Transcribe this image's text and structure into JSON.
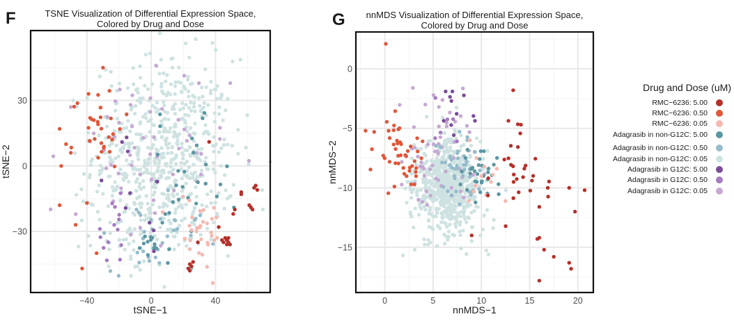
{
  "figure": {
    "panels": [
      {
        "letter": "F",
        "title_line1": "TSNE Visualization of Differential Expression Space,",
        "title_line2": "Colored by Drug and Dose"
      },
      {
        "letter": "G",
        "title_line1": "nnMDS Visualization of Differential Expression Space,",
        "title_line2": "Colored by Drug and Dose"
      }
    ]
  },
  "legend": {
    "title": "Drug and Dose (uM)",
    "entries": [
      {
        "label": "RMC−6236: 5.00",
        "color": "#b5302a"
      },
      {
        "label": "RMC−6236: 0.50",
        "color": "#e0573a"
      },
      {
        "label": "RMC−6236: 0.05",
        "color": "#f5b8b0"
      },
      {
        "label": "Adagrasib in non-G12C: 5.00",
        "color": "#5b97a2"
      },
      {
        "label": "Adagrasib in non-G12C: 0.50",
        "color": "#96bccb"
      },
      {
        "label": "Adagrasib in non-G12C: 0.05",
        "color": "#cfe2e2"
      },
      {
        "label": "Adagrasib in G12C: 5.00",
        "color": "#7a4c9a"
      },
      {
        "label": "Adagrasib in G12C: 0.50",
        "color": "#a57bc1"
      },
      {
        "label": "Adagrasib in G12C: 0.05",
        "color": "#c6a8d3"
      }
    ]
  },
  "chart_data": [
    {
      "type": "scatter",
      "title": "TSNE Visualization of Differential Expression Space, Colored by Drug and Dose",
      "xlabel": "tSNE−1",
      "ylabel": "tSNE−2",
      "xlim": [
        -75,
        74
      ],
      "ylim": [
        -58,
        62
      ],
      "xticks": [
        -40,
        0,
        40
      ],
      "xtick_labels": [
        "−40",
        "0",
        "40"
      ],
      "yticks": [
        -30,
        0,
        30
      ],
      "ytick_labels": [
        "−30",
        "0",
        "30"
      ],
      "grid": true,
      "legend_position": "right",
      "clusters": [
        {
          "group": 5,
          "n": 620,
          "cx": 8,
          "cy": 5,
          "sx": 22,
          "sy": 22
        },
        {
          "group": 5,
          "n": 40,
          "cx": -10,
          "cy": -30,
          "sx": 14,
          "sy": 8
        },
        {
          "group": 8,
          "n": 55,
          "cx": -8,
          "cy": 0,
          "sx": 28,
          "sy": 24
        },
        {
          "group": 7,
          "n": 14,
          "cx": -25,
          "cy": -30,
          "sx": 8,
          "sy": 8
        },
        {
          "group": 6,
          "n": 10,
          "cx": -5,
          "cy": -15,
          "sx": 20,
          "sy": 15
        },
        {
          "group": 4,
          "n": 25,
          "cx": 8,
          "cy": -25,
          "sx": 16,
          "sy": 12
        },
        {
          "group": 3,
          "n": 30,
          "cx": 20,
          "cy": -10,
          "sx": 14,
          "sy": 14
        },
        {
          "group": 3,
          "n": 12,
          "cx": 0,
          "cy": -38,
          "sx": 5,
          "sy": 4
        },
        {
          "group": 4,
          "n": 10,
          "cx": 0,
          "cy": -38,
          "sx": 4,
          "sy": 4
        },
        {
          "group": 2,
          "n": 32,
          "cx": 30,
          "cy": -30,
          "sx": 9,
          "sy": 9
        },
        {
          "group": 1,
          "n": 28,
          "cx": -33,
          "cy": 18,
          "sx": 8,
          "sy": 9
        }
      ],
      "points": [
        {
          "group": 0,
          "x": 47,
          "y": -34
        },
        {
          "group": 0,
          "x": 48,
          "y": -35
        },
        {
          "group": 0,
          "x": 46,
          "y": -33
        },
        {
          "group": 0,
          "x": 49,
          "y": -36
        },
        {
          "group": 0,
          "x": 45,
          "y": -35
        },
        {
          "group": 0,
          "x": 47,
          "y": -36
        },
        {
          "group": 0,
          "x": 48,
          "y": -33
        },
        {
          "group": 0,
          "x": 44,
          "y": -34
        },
        {
          "group": 0,
          "x": 24,
          "y": -45
        },
        {
          "group": 0,
          "x": 25,
          "y": -46
        },
        {
          "group": 0,
          "x": 23,
          "y": -47
        },
        {
          "group": 0,
          "x": 26,
          "y": -44
        },
        {
          "group": 0,
          "x": 24,
          "y": -48
        },
        {
          "group": 0,
          "x": 62,
          "y": -19
        },
        {
          "group": 0,
          "x": 63,
          "y": -20
        },
        {
          "group": 0,
          "x": 61,
          "y": -18
        },
        {
          "group": 0,
          "x": 64,
          "y": -10
        },
        {
          "group": 0,
          "x": 65,
          "y": -9
        },
        {
          "group": 0,
          "x": 66,
          "y": -11
        },
        {
          "group": 0,
          "x": 56,
          "y": -13
        },
        {
          "group": 0,
          "x": 51,
          "y": -22
        },
        {
          "group": 0,
          "x": 52,
          "y": -20
        },
        {
          "group": 0,
          "x": 42,
          "y": -28
        },
        {
          "group": 0,
          "x": 56,
          "y": -12
        },
        {
          "group": 0,
          "x": 29,
          "y": -35
        },
        {
          "group": 0,
          "x": 36,
          "y": 11
        },
        {
          "group": 1,
          "x": -57,
          "y": 17
        },
        {
          "group": 1,
          "x": -53,
          "y": 10
        },
        {
          "group": 1,
          "x": -50,
          "y": 6
        },
        {
          "group": 1,
          "x": -56,
          "y": 0
        },
        {
          "group": 1,
          "x": -57,
          "y": -18
        },
        {
          "group": 1,
          "x": -47,
          "y": -27
        },
        {
          "group": 1,
          "x": -40,
          "y": -17
        },
        {
          "group": 1,
          "x": -34,
          "y": -40
        },
        {
          "group": 1,
          "x": -43,
          "y": -47
        },
        {
          "group": 1,
          "x": -38,
          "y": 22
        },
        {
          "group": 1,
          "x": -30,
          "y": 45
        },
        {
          "group": 1,
          "x": -39,
          "y": 33
        },
        {
          "group": 8,
          "x": 3,
          "y": 46
        },
        {
          "group": 8,
          "x": -50,
          "y": 27
        }
      ]
    },
    {
      "type": "scatter",
      "title": "nnMDS Visualization of Differential Expression Space, Colored by Drug and Dose",
      "xlabel": "nnMDS−1",
      "ylabel": "nnMDS−2",
      "xlim": [
        -3,
        21.6
      ],
      "ylim": [
        -18.8,
        3.1
      ],
      "xticks": [
        0,
        5,
        10,
        15,
        20
      ],
      "xtick_labels": [
        "0",
        "5",
        "10",
        "15",
        "20"
      ],
      "yticks": [
        0,
        -5,
        -10,
        -15
      ],
      "ytick_labels": [
        "0",
        "−5",
        "−10",
        "−15"
      ],
      "grid": true,
      "legend_position": "right",
      "clusters": [
        {
          "group": 5,
          "n": 620,
          "cx": 6.4,
          "cy": -9.6,
          "sx": 1.6,
          "sy": 1.8
        },
        {
          "group": 5,
          "n": 60,
          "cx": 7.5,
          "cy": -12,
          "sx": 2.2,
          "sy": 1.7
        },
        {
          "group": 4,
          "n": 45,
          "cx": 7.7,
          "cy": -8.5,
          "sx": 1.2,
          "sy": 1.6
        },
        {
          "group": 3,
          "n": 32,
          "cx": 9.8,
          "cy": -8.8,
          "sx": 1.0,
          "sy": 1.2
        },
        {
          "group": 8,
          "n": 55,
          "cx": 5.5,
          "cy": -7.8,
          "sx": 2.0,
          "sy": 2.4
        },
        {
          "group": 7,
          "n": 6,
          "cx": 6.5,
          "cy": -5,
          "sx": 1.0,
          "sy": 1.4
        },
        {
          "group": 6,
          "n": 8,
          "cx": 7,
          "cy": -4,
          "sx": 1.0,
          "sy": 1.8
        },
        {
          "group": 1,
          "n": 45,
          "cx": 1.6,
          "cy": -7.2,
          "sx": 1.3,
          "sy": 1.5
        },
        {
          "group": 0,
          "n": 28,
          "cx": 14,
          "cy": -8,
          "sx": 1.8,
          "sy": 2.2
        }
      ],
      "points": [
        {
          "group": 1,
          "x": 0.1,
          "y": 2.1
        },
        {
          "group": 1,
          "x": -2.0,
          "y": -5.2
        },
        {
          "group": 1,
          "x": -1.1,
          "y": -5.3
        },
        {
          "group": 0,
          "x": 13.3,
          "y": -1.8
        },
        {
          "group": 0,
          "x": 15.8,
          "y": -14.3
        },
        {
          "group": 0,
          "x": 16.0,
          "y": -14.2
        },
        {
          "group": 0,
          "x": 16.5,
          "y": -15.2
        },
        {
          "group": 0,
          "x": 17.5,
          "y": -15.8
        },
        {
          "group": 0,
          "x": 19.1,
          "y": -16.3
        },
        {
          "group": 0,
          "x": 19.3,
          "y": -16.8
        },
        {
          "group": 0,
          "x": 16.0,
          "y": -17.8
        },
        {
          "group": 0,
          "x": 19.7,
          "y": -12.0
        },
        {
          "group": 0,
          "x": 20.7,
          "y": -10.2
        },
        {
          "group": 0,
          "x": 19.1,
          "y": -10.0
        },
        {
          "group": 0,
          "x": 16.0,
          "y": -11.6
        },
        {
          "group": 0,
          "x": 9.0,
          "y": -14.0
        },
        {
          "group": 8,
          "x": 2.9,
          "y": -1.6
        },
        {
          "group": 8,
          "x": 4.2,
          "y": -3.0
        },
        {
          "group": 8,
          "x": 5.6,
          "y": -3.2
        },
        {
          "group": 6,
          "x": 6.3,
          "y": -1.9
        },
        {
          "group": 6,
          "x": 7.0,
          "y": -1.9
        },
        {
          "group": 6,
          "x": 6.9,
          "y": -2.7
        },
        {
          "group": 2,
          "x": 11.6,
          "y": -8.4
        },
        {
          "group": 2,
          "x": 12.5,
          "y": -11.1
        },
        {
          "group": 2,
          "x": 11.0,
          "y": -9.5
        },
        {
          "group": 2,
          "x": 10.5,
          "y": -10.6
        },
        {
          "group": 2,
          "x": 9.2,
          "y": -10.3
        },
        {
          "group": 2,
          "x": 8.7,
          "y": -11.1
        },
        {
          "group": 2,
          "x": 10.0,
          "y": -9.0
        },
        {
          "group": 2,
          "x": 9.5,
          "y": -7.5
        },
        {
          "group": 2,
          "x": 8.8,
          "y": -6.0
        },
        {
          "group": 2,
          "x": 9.4,
          "y": -9.8
        },
        {
          "group": 2,
          "x": 10.3,
          "y": -8.2
        },
        {
          "group": 2,
          "x": 11.2,
          "y": -8.9
        },
        {
          "group": 5,
          "x": 8.1,
          "y": -13.6
        },
        {
          "group": 5,
          "x": 9.9,
          "y": -14.0
        },
        {
          "group": 5,
          "x": 11.3,
          "y": -12.7
        },
        {
          "group": 5,
          "x": 7.9,
          "y": -15.1
        },
        {
          "group": 5,
          "x": 3.1,
          "y": -15.2
        }
      ]
    }
  ]
}
